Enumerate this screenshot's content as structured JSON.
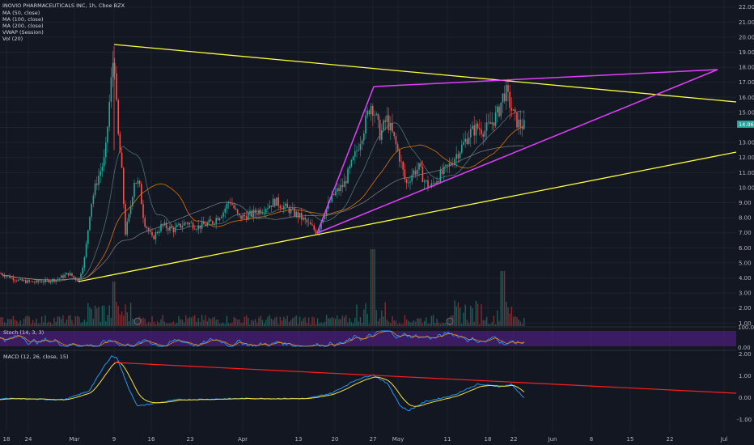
{
  "legend": {
    "title": "INOVIO PHARMACEUTICALS INC, 1h, Cboe BZX",
    "ma50": "MA (50, close)",
    "ma100": "MA (100, close)",
    "ma200": "MA (200, close)",
    "vwap": "VWAP (Session)",
    "vol": "Vol (20)"
  },
  "stoch": {
    "label": "Stoch (14, 3, 3)",
    "ticks": [
      "100.00",
      "0.00"
    ]
  },
  "macd": {
    "label": "MACD (12, 26, close, 15)",
    "ticks": [
      "2.00",
      "1.00",
      "0.00",
      "-1.00"
    ]
  },
  "price_ticks": [
    "22.00",
    "21.00",
    "20.00",
    "19.00",
    "18.00",
    "17.00",
    "16.00",
    "15.00",
    "13.00",
    "12.00",
    "11.00",
    "10.00",
    "9.00",
    "8.00",
    "7.00",
    "6.00",
    "5.00",
    "4.00",
    "3.00",
    "2.00",
    "1.00"
  ],
  "last_price": "14.06",
  "x_ticks": [
    "18",
    "24",
    "Mar",
    "9",
    "16",
    "23",
    "Apr",
    "13",
    "20",
    "27",
    "May",
    "11",
    "18",
    "22",
    "Jun",
    "8",
    "15",
    "22",
    "Jul"
  ],
  "colors": {
    "background": "#131722",
    "up": "#26a69a",
    "down": "#ef5350",
    "yellow_trend": "#ffff3b",
    "magenta_trend": "#e040fb",
    "red_trend": "#ff1e1e",
    "stoch_band": "#4a1f7a"
  },
  "chart_data": {
    "type": "line",
    "symbol": "INO",
    "timeframe": "1h",
    "ylim": [
      0.8,
      22.2
    ],
    "x": [
      "Feb 18",
      "Feb 24",
      "Mar 2",
      "Mar 9",
      "Mar 16",
      "Mar 23",
      "Apr 1",
      "Apr 13",
      "Apr 20",
      "Apr 27",
      "May 4",
      "May 11",
      "May 18",
      "May 22"
    ],
    "series": [
      {
        "name": "price",
        "values": [
          4.2,
          3.8,
          4.8,
          19.4,
          7.2,
          7.8,
          8.4,
          7.1,
          11.0,
          15.5,
          10.0,
          12.6,
          15.2,
          14.06
        ]
      }
    ],
    "last_price": 14.06,
    "trendlines": [
      {
        "color": "yellow",
        "from": [
          "Mar 9",
          19.4
        ],
        "to": [
          "Jul",
          15.6
        ]
      },
      {
        "color": "yellow",
        "from": [
          "Feb 24",
          3.8
        ],
        "to": [
          "Jul",
          12.2
        ]
      },
      {
        "color": "magenta",
        "from": [
          "Apr 17",
          6.9
        ],
        "to": [
          "Apr 26",
          16.5
        ]
      },
      {
        "color": "magenta",
        "from": [
          "Apr 26",
          16.5
        ],
        "to": [
          "May 20",
          16.9
        ]
      },
      {
        "color": "magenta",
        "from": [
          "Apr 17",
          6.9
        ],
        "to": [
          "Jun 30",
          17.6
        ]
      }
    ],
    "macd": {
      "ylim": [
        -1.6,
        2.2
      ],
      "trendline": {
        "from": [
          "Mar 9",
          1.75
        ],
        "to": [
          "Jul",
          0.25
        ]
      }
    }
  }
}
